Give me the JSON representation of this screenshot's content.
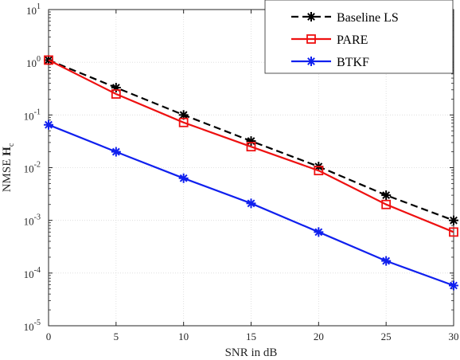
{
  "chart_data": {
    "type": "line",
    "title": "",
    "xlabel": "SNR in dB",
    "ylabel": "NMSE H_c",
    "ylabel_main": "NMSE ",
    "ylabel_bold": "H",
    "ylabel_sub": "c",
    "xlim": [
      0,
      30
    ],
    "ylim": [
      1e-05,
      10
    ],
    "y_scale": "log",
    "grid": true,
    "legend_position": "top-right",
    "x_ticks": [
      0,
      5,
      10,
      15,
      20,
      25,
      30
    ],
    "x_tick_labels": [
      "0",
      "5",
      "10",
      "15",
      "20",
      "25",
      "30"
    ],
    "y_ticks": [
      {
        "value": 10,
        "base": "10",
        "exp": "1"
      },
      {
        "value": 1,
        "base": "10",
        "exp": "0"
      },
      {
        "value": 0.1,
        "base": "10",
        "exp": "-1"
      },
      {
        "value": 0.01,
        "base": "10",
        "exp": "-2"
      },
      {
        "value": 0.001,
        "base": "10",
        "exp": "-3"
      },
      {
        "value": 0.0001,
        "base": "10",
        "exp": "-4"
      },
      {
        "value": 1e-05,
        "base": "10",
        "exp": "-5"
      }
    ],
    "x": [
      0,
      5,
      10,
      15,
      20,
      25,
      30
    ],
    "series": [
      {
        "name": "Baseline LS",
        "color": "#000000",
        "line_style": "dashed",
        "marker": "asterisk",
        "values": [
          1.1,
          0.33,
          0.1,
          0.032,
          0.0105,
          0.003,
          0.001
        ]
      },
      {
        "name": "PARE",
        "color": "#ee1111",
        "line_style": "solid",
        "marker": "square",
        "values": [
          1.1,
          0.25,
          0.072,
          0.025,
          0.0088,
          0.002,
          0.0006
        ]
      },
      {
        "name": "BTKF",
        "color": "#1020ee",
        "line_style": "solid",
        "marker": "asterisk",
        "values": [
          0.065,
          0.02,
          0.0063,
          0.0021,
          0.0006,
          0.00017,
          5.8e-05
        ]
      }
    ]
  }
}
